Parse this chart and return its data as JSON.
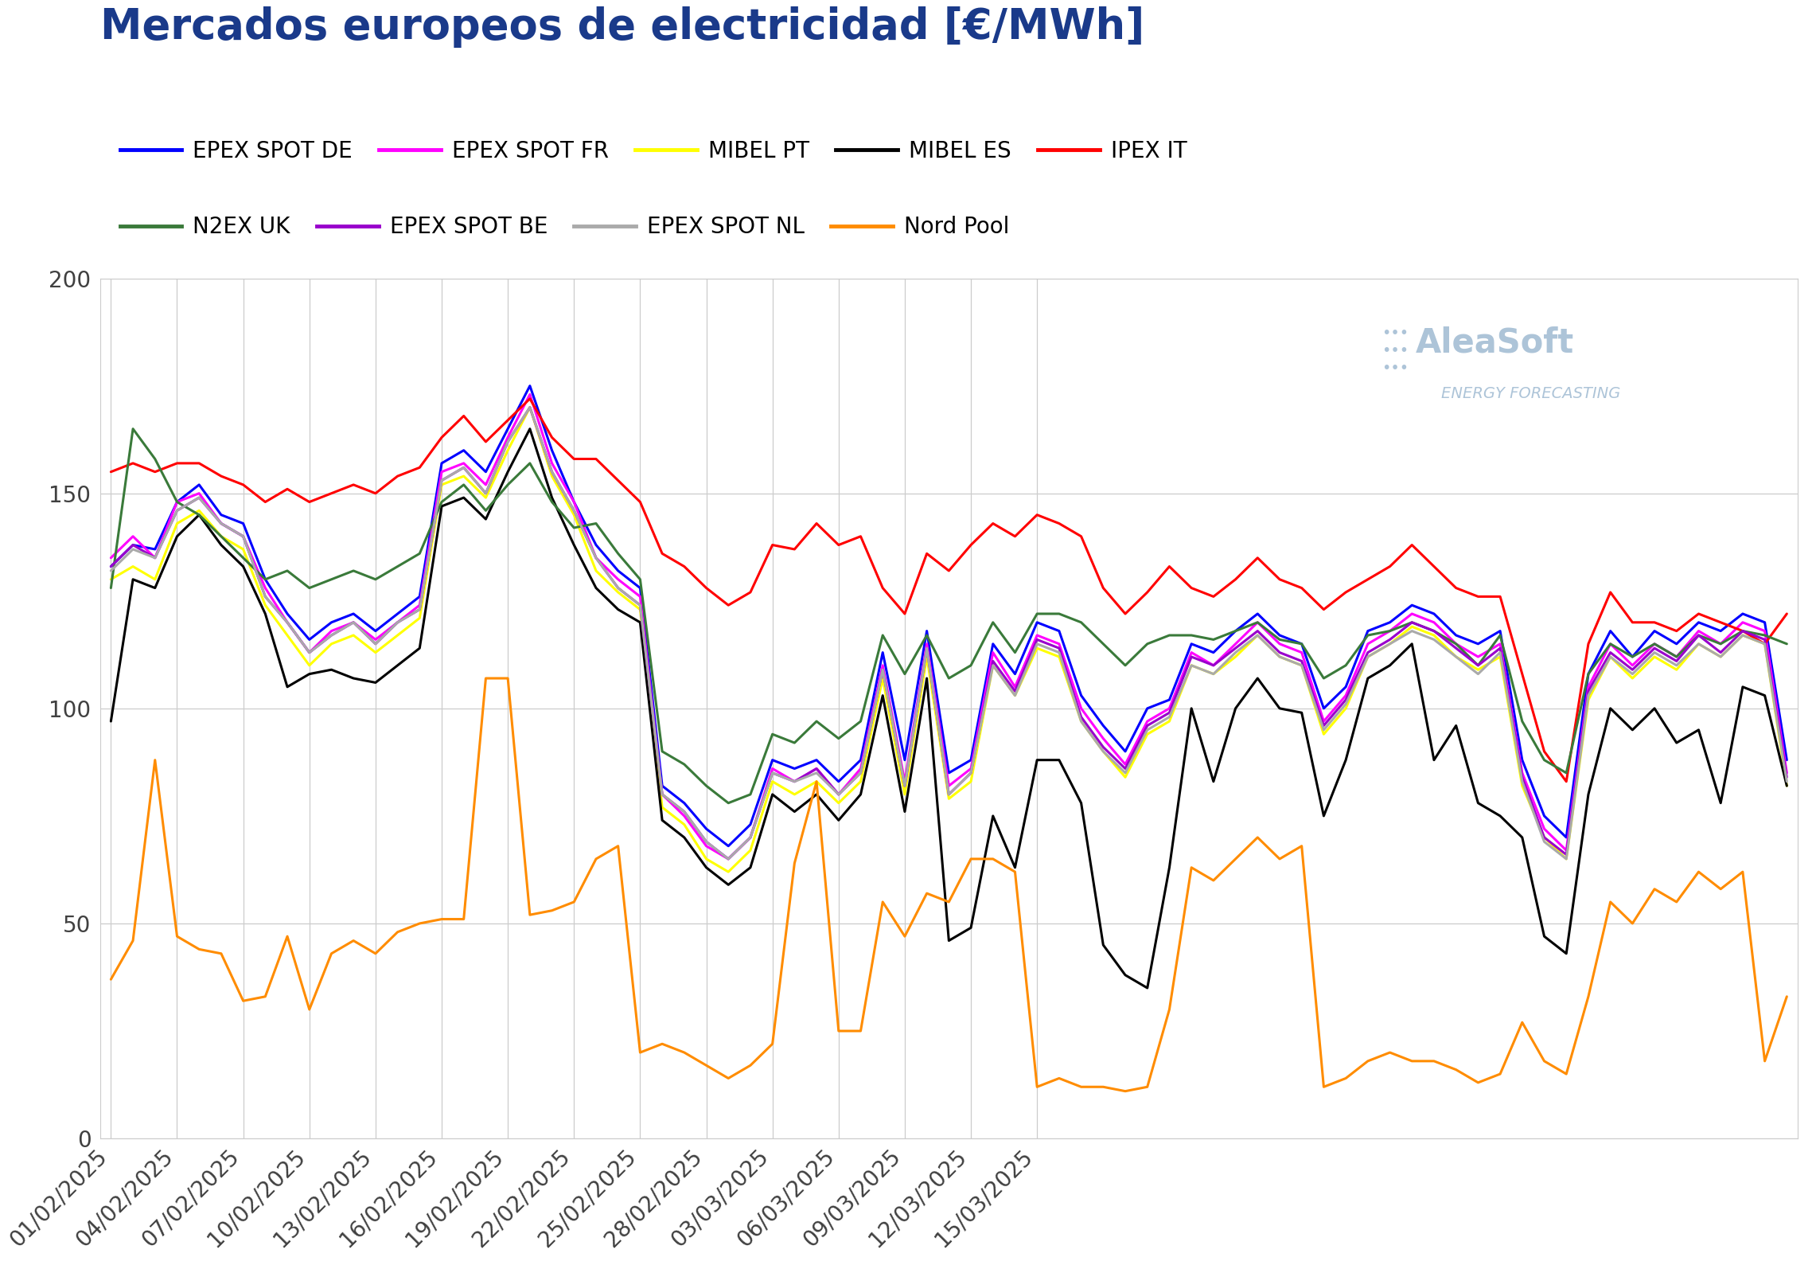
{
  "title": "Mercados europeos de electricidad [€/MWh]",
  "title_color": "#1a3a8a",
  "background_color": "#ffffff",
  "plot_background": "#ffffff",
  "grid_color": "#cccccc",
  "ylim": [
    0,
    200
  ],
  "yticks": [
    0,
    50,
    100,
    150,
    200
  ],
  "series": {
    "EPEX SPOT DE": {
      "color": "#0000ff",
      "data": [
        133,
        138,
        137,
        148,
        152,
        145,
        143,
        130,
        122,
        116,
        120,
        122,
        118,
        122,
        126,
        157,
        160,
        155,
        165,
        175,
        160,
        148,
        138,
        132,
        128,
        82,
        78,
        72,
        68,
        73,
        88,
        86,
        88,
        83,
        88,
        113,
        88,
        118,
        85,
        88,
        115,
        108,
        120,
        118,
        103,
        96,
        90,
        100,
        102,
        115,
        113,
        118,
        122,
        117,
        115,
        100,
        105,
        118,
        120,
        124,
        122,
        117,
        115,
        118,
        88,
        75,
        70,
        108,
        118,
        112,
        118,
        115,
        120,
        118,
        122,
        120,
        88
      ]
    },
    "EPEX SPOT FR": {
      "color": "#ff00ff",
      "data": [
        135,
        140,
        135,
        148,
        150,
        143,
        140,
        128,
        120,
        113,
        118,
        120,
        116,
        120,
        124,
        155,
        157,
        152,
        163,
        173,
        157,
        148,
        135,
        130,
        126,
        80,
        75,
        68,
        65,
        70,
        86,
        83,
        86,
        80,
        86,
        110,
        83,
        115,
        82,
        86,
        113,
        105,
        117,
        115,
        100,
        93,
        87,
        97,
        100,
        113,
        110,
        115,
        120,
        115,
        113,
        97,
        103,
        115,
        118,
        122,
        120,
        115,
        112,
        115,
        85,
        72,
        67,
        105,
        115,
        110,
        115,
        112,
        118,
        115,
        120,
        118,
        85
      ]
    },
    "MIBEL PT": {
      "color": "#ffff00",
      "data": [
        130,
        133,
        130,
        143,
        146,
        140,
        137,
        124,
        117,
        110,
        115,
        117,
        113,
        117,
        121,
        152,
        154,
        149,
        160,
        170,
        154,
        145,
        132,
        127,
        123,
        77,
        73,
        65,
        62,
        67,
        83,
        80,
        83,
        78,
        83,
        107,
        80,
        112,
        79,
        83,
        110,
        103,
        114,
        112,
        97,
        90,
        84,
        94,
        97,
        110,
        108,
        112,
        117,
        112,
        110,
        94,
        100,
        112,
        115,
        119,
        117,
        112,
        109,
        112,
        82,
        70,
        65,
        102,
        112,
        107,
        112,
        109,
        115,
        112,
        117,
        115,
        82
      ]
    },
    "MIBEL ES": {
      "color": "#000000",
      "data": [
        97,
        130,
        128,
        140,
        145,
        138,
        133,
        122,
        105,
        108,
        109,
        107,
        106,
        110,
        114,
        147,
        149,
        144,
        155,
        165,
        149,
        138,
        128,
        123,
        120,
        74,
        70,
        63,
        59,
        63,
        80,
        76,
        80,
        74,
        80,
        103,
        76,
        107,
        46,
        49,
        75,
        63,
        88,
        88,
        78,
        45,
        38,
        35,
        63,
        100,
        83,
        100,
        107,
        100,
        99,
        75,
        88,
        107,
        110,
        115,
        88,
        96,
        78,
        75,
        70,
        47,
        43,
        80,
        100,
        95,
        100,
        92,
        95,
        78,
        105,
        103,
        82
      ]
    },
    "IPEX IT": {
      "color": "#ff0000",
      "data": [
        155,
        157,
        155,
        157,
        157,
        154,
        152,
        148,
        151,
        148,
        150,
        152,
        150,
        154,
        156,
        163,
        168,
        162,
        167,
        172,
        163,
        158,
        158,
        153,
        148,
        136,
        133,
        128,
        124,
        127,
        138,
        137,
        143,
        138,
        140,
        128,
        122,
        136,
        132,
        138,
        143,
        140,
        145,
        143,
        140,
        128,
        122,
        127,
        133,
        128,
        126,
        130,
        135,
        130,
        128,
        123,
        127,
        130,
        133,
        138,
        133,
        128,
        126,
        126,
        108,
        90,
        83,
        115,
        127,
        120,
        120,
        118,
        122,
        120,
        118,
        115,
        122
      ]
    },
    "N2EX UK": {
      "color": "#3a7a3a",
      "data": [
        128,
        165,
        158,
        148,
        145,
        140,
        135,
        130,
        132,
        128,
        130,
        132,
        130,
        133,
        136,
        148,
        152,
        146,
        152,
        157,
        148,
        142,
        143,
        136,
        130,
        90,
        87,
        82,
        78,
        80,
        94,
        92,
        97,
        93,
        97,
        117,
        108,
        117,
        107,
        110,
        120,
        113,
        122,
        122,
        120,
        115,
        110,
        115,
        117,
        117,
        116,
        118,
        120,
        116,
        115,
        107,
        110,
        117,
        118,
        120,
        118,
        115,
        110,
        117,
        97,
        88,
        85,
        108,
        115,
        112,
        115,
        112,
        117,
        115,
        118,
        117,
        115
      ]
    },
    "EPEX SPOT BE": {
      "color": "#9900cc",
      "data": [
        133,
        138,
        135,
        146,
        149,
        143,
        140,
        126,
        120,
        113,
        117,
        120,
        115,
        120,
        123,
        153,
        156,
        150,
        162,
        170,
        155,
        146,
        135,
        128,
        124,
        80,
        76,
        69,
        65,
        70,
        85,
        83,
        86,
        80,
        85,
        109,
        82,
        114,
        80,
        85,
        111,
        104,
        116,
        114,
        98,
        91,
        86,
        96,
        99,
        112,
        110,
        114,
        118,
        113,
        111,
        96,
        102,
        113,
        116,
        120,
        118,
        114,
        110,
        114,
        84,
        70,
        66,
        104,
        113,
        109,
        114,
        111,
        117,
        113,
        118,
        116,
        84
      ]
    },
    "EPEX SPOT NL": {
      "color": "#aaaaaa",
      "data": [
        132,
        137,
        135,
        146,
        149,
        143,
        140,
        126,
        120,
        113,
        117,
        120,
        115,
        120,
        123,
        153,
        156,
        150,
        162,
        170,
        155,
        146,
        135,
        128,
        124,
        80,
        76,
        69,
        65,
        70,
        85,
        83,
        85,
        80,
        85,
        109,
        82,
        114,
        80,
        85,
        110,
        103,
        115,
        113,
        97,
        90,
        85,
        95,
        98,
        110,
        108,
        113,
        117,
        112,
        110,
        95,
        101,
        112,
        115,
        118,
        116,
        112,
        108,
        113,
        83,
        69,
        65,
        103,
        112,
        108,
        113,
        110,
        115,
        112,
        117,
        115,
        83
      ]
    },
    "Nord Pool": {
      "color": "#ff8c00",
      "data": [
        37,
        46,
        88,
        47,
        44,
        43,
        32,
        33,
        47,
        30,
        43,
        46,
        43,
        48,
        50,
        51,
        51,
        107,
        107,
        52,
        53,
        55,
        65,
        68,
        20,
        22,
        20,
        17,
        14,
        17,
        22,
        64,
        83,
        25,
        25,
        55,
        47,
        57,
        55,
        65,
        65,
        62,
        12,
        14,
        12,
        12,
        11,
        12,
        30,
        63,
        60,
        65,
        70,
        65,
        68,
        12,
        14,
        18,
        20,
        18,
        18,
        16,
        13,
        15,
        27,
        18,
        15,
        33,
        55,
        50,
        58,
        55,
        62,
        58,
        62,
        18,
        33
      ]
    }
  },
  "dates_start": "2025-02-01",
  "xtick_labels": [
    "01/02/2025",
    "04/02/2025",
    "07/02/2025",
    "10/02/2025",
    "13/02/2025",
    "16/02/2025",
    "19/02/2025",
    "22/02/2025",
    "25/02/2025",
    "28/02/2025",
    "03/03/2025",
    "06/03/2025",
    "09/03/2025",
    "12/03/2025",
    "15/03/2025"
  ],
  "legend_labels_row1": [
    "EPEX SPOT DE",
    "EPEX SPOT FR",
    "MIBEL PT",
    "MIBEL ES",
    "IPEX IT"
  ],
  "legend_labels_row2": [
    "N2EX UK",
    "EPEX SPOT BE",
    "EPEX SPOT NL",
    "Nord Pool"
  ],
  "watermark_color": "#adc4d8",
  "tick_label_color": "#404040",
  "tick_label_size": 20,
  "line_width": 2.2
}
